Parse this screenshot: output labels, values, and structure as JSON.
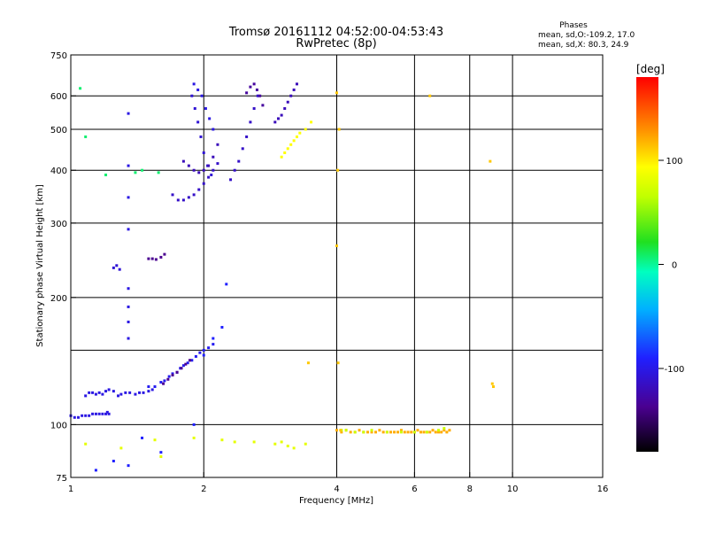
{
  "chart_data": {
    "type": "scatter",
    "title_line1": "Tromsø 20161112 04:52:00-04:53:43",
    "title_line2": "RwPretec (8p)",
    "xlabel": "Frequency [MHz]",
    "ylabel": "Stationary phase Virtual Height [km]",
    "x_scale": "log2",
    "y_scale": "log",
    "xlim": [
      1,
      16
    ],
    "ylim": [
      75,
      750
    ],
    "x_ticks": [
      {
        "value": 1,
        "label": "1"
      },
      {
        "value": 2,
        "label": "2"
      },
      {
        "value": 4,
        "label": "4"
      },
      {
        "value": 6,
        "label": "6"
      },
      {
        "value": 8,
        "label": "8"
      },
      {
        "value": 10,
        "label": "10"
      },
      {
        "value": 16,
        "label": "16"
      }
    ],
    "y_ticks": [
      {
        "value": 75,
        "label": "75"
      },
      {
        "value": 100,
        "label": "100"
      },
      {
        "value": 200,
        "label": "200"
      },
      {
        "value": 300,
        "label": "300"
      },
      {
        "value": 400,
        "label": "400"
      },
      {
        "value": 500,
        "label": "500"
      },
      {
        "value": 600,
        "label": "600"
      },
      {
        "value": 750,
        "label": "750"
      }
    ],
    "grid_x": [
      2,
      4,
      6,
      8,
      10
    ],
    "grid_y": [
      100,
      150,
      200,
      300,
      400,
      500,
      600
    ],
    "grid": true,
    "phases_box": {
      "title": "Phases",
      "line_O": "mean, sd,O:-109.2, 17.0",
      "line_X": "mean, sd,X:  80.3, 24.9"
    },
    "colorbar": {
      "label": "[deg]",
      "range": [
        -180,
        180
      ],
      "ticks": [
        {
          "value": 100,
          "label": "100"
        },
        {
          "value": 0,
          "label": "0"
        },
        {
          "value": -100,
          "label": "-100"
        }
      ]
    },
    "series": [
      {
        "x": [
          1.0,
          1.02,
          1.04,
          1.06,
          1.08,
          1.1,
          1.12,
          1.14,
          1.16,
          1.18,
          1.2,
          1.21,
          1.22
        ],
        "y": [
          105,
          104,
          104,
          105,
          105,
          105,
          106,
          106,
          106,
          106,
          106,
          107,
          106
        ],
        "phase": -110
      },
      {
        "x": [
          1.08,
          1.1,
          1.12,
          1.14,
          1.16,
          1.18,
          1.2,
          1.22,
          1.25,
          1.28,
          1.3,
          1.33,
          1.36,
          1.4,
          1.43,
          1.46,
          1.5,
          1.53
        ],
        "y": [
          117,
          119,
          119,
          118,
          119,
          118,
          120,
          121,
          120,
          117,
          118,
          119,
          119,
          118,
          119,
          119,
          120,
          121
        ],
        "phase": -110
      },
      {
        "x": [
          1.5,
          1.55,
          1.6,
          1.63,
          1.67,
          1.7,
          1.74,
          1.77,
          1.8,
          1.84,
          1.88,
          1.92,
          1.96,
          2.0,
          2.05,
          2.1
        ],
        "y": [
          123,
          123,
          126,
          127,
          130,
          132,
          133,
          136,
          138,
          140,
          142,
          145,
          148,
          150,
          152,
          155
        ],
        "phase": -105
      },
      {
        "x": [
          1.62,
          1.66,
          1.7,
          1.74,
          1.78,
          1.82,
          1.86
        ],
        "y": [
          125,
          128,
          131,
          133,
          136,
          139,
          142
        ],
        "phase": -140
      },
      {
        "x": [
          1.35,
          1.35,
          1.35,
          1.35,
          1.35,
          1.35,
          1.35,
          1.35
        ],
        "y": [
          545,
          410,
          345,
          290,
          210,
          190,
          175,
          160
        ],
        "phase": -110
      },
      {
        "x": [
          1.25,
          1.27,
          1.29
        ],
        "y": [
          235,
          238,
          233
        ],
        "phase": -115
      },
      {
        "x": [
          1.5,
          1.53,
          1.56,
          1.6,
          1.63
        ],
        "y": [
          247,
          247,
          246,
          249,
          253
        ],
        "phase": -140
      },
      {
        "x": [
          1.7,
          1.75,
          1.8,
          1.85,
          1.9,
          1.95,
          2.0,
          2.05,
          2.1,
          2.15
        ],
        "y": [
          350,
          340,
          340,
          345,
          350,
          360,
          372,
          385,
          400,
          415
        ],
        "phase": -120
      },
      {
        "x": [
          1.88,
          1.91,
          1.94,
          1.97,
          2.0,
          2.04,
          2.08
        ],
        "y": [
          600,
          560,
          520,
          480,
          440,
          410,
          390
        ],
        "phase": -115
      },
      {
        "x": [
          1.9,
          1.94,
          1.98,
          2.02,
          2.06,
          2.1
        ],
        "y": [
          640,
          620,
          600,
          560,
          530,
          500
        ],
        "phase": -110
      },
      {
        "x": [
          1.8,
          1.85,
          1.9,
          1.95,
          2.0,
          2.05,
          2.1,
          2.15
        ],
        "y": [
          420,
          410,
          400,
          395,
          400,
          410,
          430,
          460
        ],
        "phase": -125
      },
      {
        "x": [
          2.3,
          2.35,
          2.4,
          2.45,
          2.5,
          2.55,
          2.6,
          2.65
        ],
        "y": [
          380,
          400,
          420,
          450,
          480,
          520,
          560,
          600
        ],
        "phase": -120
      },
      {
        "x": [
          2.5,
          2.55,
          2.6,
          2.64,
          2.68,
          2.72
        ],
        "y": [
          610,
          630,
          640,
          620,
          600,
          570
        ],
        "phase": -135
      },
      {
        "x": [
          2.9,
          2.95,
          3.0,
          3.05,
          3.1,
          3.15,
          3.2,
          3.25
        ],
        "y": [
          520,
          530,
          540,
          560,
          580,
          600,
          620,
          640
        ],
        "phase": -125
      },
      {
        "x": [
          3.0,
          3.05,
          3.1,
          3.15,
          3.2,
          3.25,
          3.3,
          3.4,
          3.5
        ],
        "y": [
          430,
          440,
          450,
          460,
          470,
          480,
          490,
          500,
          520
        ],
        "phase": 100
      },
      {
        "x": [
          1.05,
          1.08,
          1.2,
          1.4,
          1.45,
          1.58
        ],
        "y": [
          625,
          480,
          390,
          395,
          400,
          395
        ],
        "phase": -15
      },
      {
        "x": [
          4.0,
          4.1,
          4.2,
          4.3,
          4.4,
          4.5,
          4.6,
          4.7,
          4.8,
          4.9,
          5.0,
          5.1,
          5.2,
          5.3,
          5.4,
          5.5,
          5.6,
          5.7,
          5.8,
          5.9,
          6.0,
          6.1,
          6.2,
          6.3,
          6.4,
          6.5,
          6.6,
          6.7,
          6.8,
          6.9,
          7.0,
          7.1,
          7.2
        ],
        "y": [
          97,
          96,
          97,
          96,
          96,
          97,
          96,
          96,
          96,
          96,
          97,
          96,
          96,
          96,
          96,
          96,
          97,
          96,
          96,
          96,
          96,
          97,
          96,
          96,
          96,
          96,
          97,
          96,
          96,
          96,
          97,
          96,
          97
        ],
        "phase": 130
      },
      {
        "x": [
          4.1,
          4.2,
          4.4,
          4.6,
          4.8,
          5.2,
          5.6,
          6.0,
          6.4,
          6.8,
          7.0
        ],
        "y": [
          97,
          97,
          96,
          96,
          97,
          96,
          96,
          96,
          96,
          97,
          98
        ],
        "phase": 60
      },
      {
        "x": [
          4.0,
          4.05,
          4.02,
          4.0,
          4.03,
          4.08,
          6.5,
          8.9,
          9.0,
          9.05,
          3.45
        ],
        "y": [
          610,
          500,
          400,
          265,
          140,
          97,
          600,
          420,
          125,
          123,
          140
        ],
        "phase": 120
      },
      {
        "x": [
          1.08,
          1.3,
          1.55,
          1.6,
          1.9,
          2.2,
          2.35,
          2.6,
          2.9,
          3.0,
          3.1,
          3.2,
          3.4
        ],
        "y": [
          90,
          88,
          92,
          84,
          93,
          92,
          91,
          91,
          90,
          91,
          89,
          88,
          90
        ],
        "phase": 80
      },
      {
        "x": [
          1.14,
          1.25,
          1.35,
          1.45,
          1.6,
          1.9,
          2.0,
          2.1,
          2.2,
          2.25
        ],
        "y": [
          78,
          82,
          80,
          93,
          86,
          100,
          146,
          160,
          170,
          215
        ],
        "phase": -100
      }
    ]
  }
}
